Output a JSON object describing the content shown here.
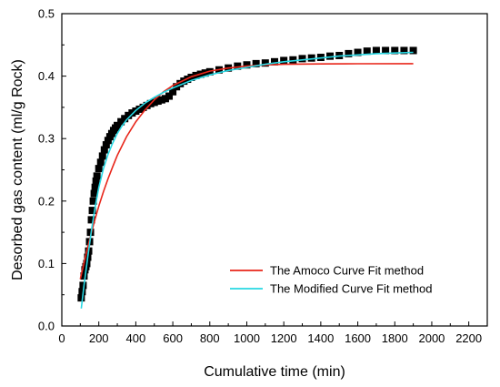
{
  "chart_data": {
    "type": "scatter",
    "title": "",
    "xlabel": "Cumulative time (min)",
    "ylabel": "Desorbed gas content (ml/g Rock)",
    "xlim": [
      0,
      2300
    ],
    "ylim": [
      0.0,
      0.5
    ],
    "x_ticks": [
      0,
      200,
      400,
      600,
      800,
      1000,
      1200,
      1400,
      1600,
      1800,
      2000,
      2200
    ],
    "y_ticks": [
      0.0,
      0.1,
      0.2,
      0.3,
      0.4,
      0.5
    ],
    "x_tick_labels": [
      "0",
      "200",
      "400",
      "600",
      "800",
      "1000",
      "1200",
      "1400",
      "1600",
      "1800",
      "2000",
      "2200"
    ],
    "y_tick_labels": [
      "0.0",
      "0.1",
      "0.2",
      "0.3",
      "0.4",
      "0.5"
    ],
    "grid": false,
    "legend_position": "bottom-right",
    "series": [
      {
        "name": "",
        "kind": "scatter",
        "color": "#000000",
        "points": [
          [
            105,
            0.045
          ],
          [
            110,
            0.055
          ],
          [
            115,
            0.065
          ],
          [
            120,
            0.08
          ],
          [
            125,
            0.09
          ],
          [
            130,
            0.095
          ],
          [
            135,
            0.1
          ],
          [
            140,
            0.11
          ],
          [
            145,
            0.12
          ],
          [
            150,
            0.135
          ],
          [
            155,
            0.15
          ],
          [
            160,
            0.17
          ],
          [
            165,
            0.185
          ],
          [
            170,
            0.2
          ],
          [
            175,
            0.212
          ],
          [
            180,
            0.222
          ],
          [
            185,
            0.232
          ],
          [
            190,
            0.24
          ],
          [
            200,
            0.252
          ],
          [
            210,
            0.262
          ],
          [
            220,
            0.272
          ],
          [
            230,
            0.282
          ],
          [
            240,
            0.29
          ],
          [
            250,
            0.297
          ],
          [
            260,
            0.303
          ],
          [
            270,
            0.308
          ],
          [
            280,
            0.313
          ],
          [
            290,
            0.317
          ],
          [
            300,
            0.321
          ],
          [
            320,
            0.327
          ],
          [
            340,
            0.332
          ],
          [
            360,
            0.337
          ],
          [
            380,
            0.341
          ],
          [
            400,
            0.344
          ],
          [
            420,
            0.347
          ],
          [
            440,
            0.35
          ],
          [
            460,
            0.353
          ],
          [
            480,
            0.356
          ],
          [
            500,
            0.358
          ],
          [
            520,
            0.36
          ],
          [
            540,
            0.362
          ],
          [
            560,
            0.364
          ],
          [
            580,
            0.368
          ],
          [
            600,
            0.375
          ],
          [
            620,
            0.383
          ],
          [
            640,
            0.388
          ],
          [
            660,
            0.392
          ],
          [
            680,
            0.395
          ],
          [
            700,
            0.398
          ],
          [
            725,
            0.401
          ],
          [
            750,
            0.403
          ],
          [
            775,
            0.405
          ],
          [
            800,
            0.407
          ],
          [
            850,
            0.41
          ],
          [
            900,
            0.413
          ],
          [
            950,
            0.416
          ],
          [
            1000,
            0.418
          ],
          [
            1050,
            0.42
          ],
          [
            1100,
            0.421
          ],
          [
            1150,
            0.423
          ],
          [
            1200,
            0.425
          ],
          [
            1250,
            0.426
          ],
          [
            1300,
            0.428
          ],
          [
            1350,
            0.429
          ],
          [
            1400,
            0.43
          ],
          [
            1450,
            0.432
          ],
          [
            1500,
            0.433
          ],
          [
            1550,
            0.436
          ],
          [
            1600,
            0.438
          ],
          [
            1650,
            0.44
          ],
          [
            1700,
            0.441
          ],
          [
            1750,
            0.441
          ],
          [
            1800,
            0.441
          ],
          [
            1850,
            0.441
          ],
          [
            1900,
            0.441
          ]
        ]
      },
      {
        "name": "The Amoco Curve Fit method",
        "kind": "line",
        "color": "#e8261a",
        "points": [
          [
            100,
            0.075
          ],
          [
            125,
            0.107
          ],
          [
            150,
            0.138
          ],
          [
            175,
            0.166
          ],
          [
            200,
            0.192
          ],
          [
            225,
            0.215
          ],
          [
            250,
            0.236
          ],
          [
            275,
            0.255
          ],
          [
            300,
            0.273
          ],
          [
            350,
            0.303
          ],
          [
            400,
            0.327
          ],
          [
            450,
            0.346
          ],
          [
            500,
            0.362
          ],
          [
            550,
            0.375
          ],
          [
            600,
            0.385
          ],
          [
            700,
            0.399
          ],
          [
            800,
            0.408
          ],
          [
            900,
            0.413
          ],
          [
            1000,
            0.416
          ],
          [
            1100,
            0.418
          ],
          [
            1200,
            0.419
          ],
          [
            1400,
            0.4195
          ],
          [
            1600,
            0.4198
          ],
          [
            1900,
            0.42
          ]
        ]
      },
      {
        "name": "The Modified Curve Fit method",
        "kind": "line",
        "color": "#27d8e3",
        "points": [
          [
            105,
            0.028
          ],
          [
            120,
            0.065
          ],
          [
            140,
            0.11
          ],
          [
            160,
            0.153
          ],
          [
            180,
            0.19
          ],
          [
            200,
            0.222
          ],
          [
            225,
            0.252
          ],
          [
            250,
            0.275
          ],
          [
            275,
            0.293
          ],
          [
            300,
            0.308
          ],
          [
            325,
            0.32
          ],
          [
            350,
            0.33
          ],
          [
            400,
            0.345
          ],
          [
            450,
            0.357
          ],
          [
            500,
            0.366
          ],
          [
            550,
            0.374
          ],
          [
            600,
            0.381
          ],
          [
            700,
            0.393
          ],
          [
            800,
            0.402
          ],
          [
            900,
            0.409
          ],
          [
            1000,
            0.414
          ],
          [
            1100,
            0.419
          ],
          [
            1200,
            0.423
          ],
          [
            1300,
            0.426
          ],
          [
            1400,
            0.429
          ],
          [
            1500,
            0.432
          ],
          [
            1600,
            0.434
          ],
          [
            1700,
            0.436
          ],
          [
            1800,
            0.437
          ],
          [
            1900,
            0.438
          ]
        ]
      }
    ]
  }
}
